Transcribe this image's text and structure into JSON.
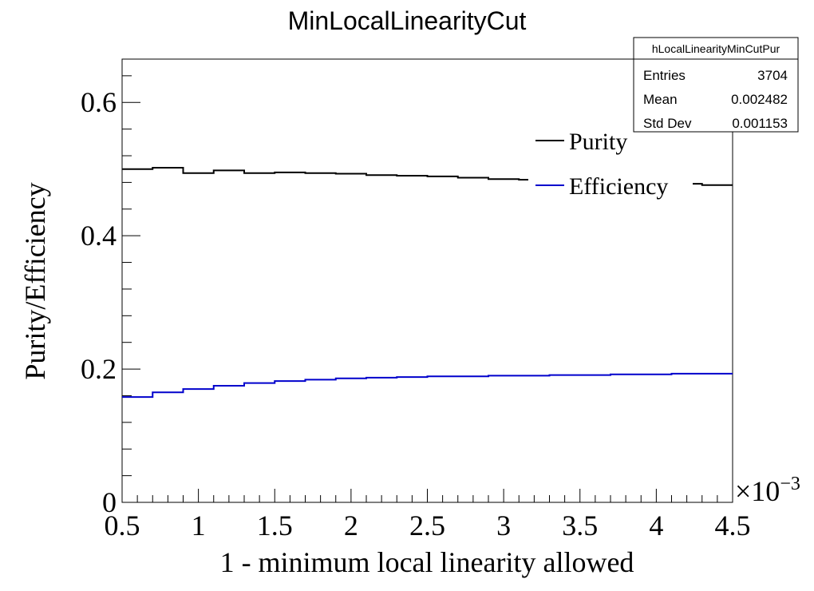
{
  "chart_data": {
    "type": "line",
    "title": "MinLocalLinearityCut",
    "xlabel": "1 - minimum local linearity allowed",
    "ylabel": "Purity/Efficiency",
    "x_multiplier_base": "×10",
    "x_multiplier_exp": "−3",
    "xlim": [
      0.5,
      4.5
    ],
    "ylim": [
      0,
      0.665
    ],
    "x_ticks": [
      0.5,
      1,
      1.5,
      2,
      2.5,
      3,
      3.5,
      4,
      4.5
    ],
    "x_tick_labels": [
      "0.5",
      "1",
      "1.5",
      "2",
      "2.5",
      "3",
      "3.5",
      "4",
      "4.5"
    ],
    "y_ticks": [
      0,
      0.2,
      0.4,
      0.6
    ],
    "y_tick_labels": [
      "0",
      "0.2",
      "0.4",
      "0.6"
    ],
    "bin_edges": [
      0.5,
      0.7,
      0.9,
      1.1,
      1.3,
      1.5,
      1.7,
      1.9,
      2.1,
      2.3,
      2.5,
      2.7,
      2.9,
      3.1,
      3.3,
      3.5,
      3.7,
      3.9,
      4.1,
      4.3,
      4.5
    ],
    "series": [
      {
        "name": "Purity",
        "color": "#000000",
        "values": [
          0.5,
          0.502,
          0.494,
          0.498,
          0.494,
          0.495,
          0.494,
          0.493,
          0.491,
          0.49,
          0.489,
          0.487,
          0.485,
          0.484,
          0.483,
          0.482,
          0.481,
          0.48,
          0.478,
          0.476
        ]
      },
      {
        "name": "Efficiency",
        "color": "#0000cc",
        "values": [
          0.158,
          0.165,
          0.17,
          0.175,
          0.179,
          0.182,
          0.184,
          0.186,
          0.187,
          0.188,
          0.189,
          0.189,
          0.19,
          0.19,
          0.191,
          0.191,
          0.192,
          0.192,
          0.193,
          0.193
        ]
      }
    ],
    "legend": {
      "position": "top-right",
      "entries": [
        "Purity",
        "Efficiency"
      ]
    },
    "grid": false
  },
  "stats_box": {
    "name": "hLocalLinearityMinCutPur",
    "rows": [
      {
        "label": "Entries",
        "value": "3704"
      },
      {
        "label": "Mean",
        "value": "0.002482"
      },
      {
        "label": "Std Dev",
        "value": "0.001153"
      }
    ]
  }
}
